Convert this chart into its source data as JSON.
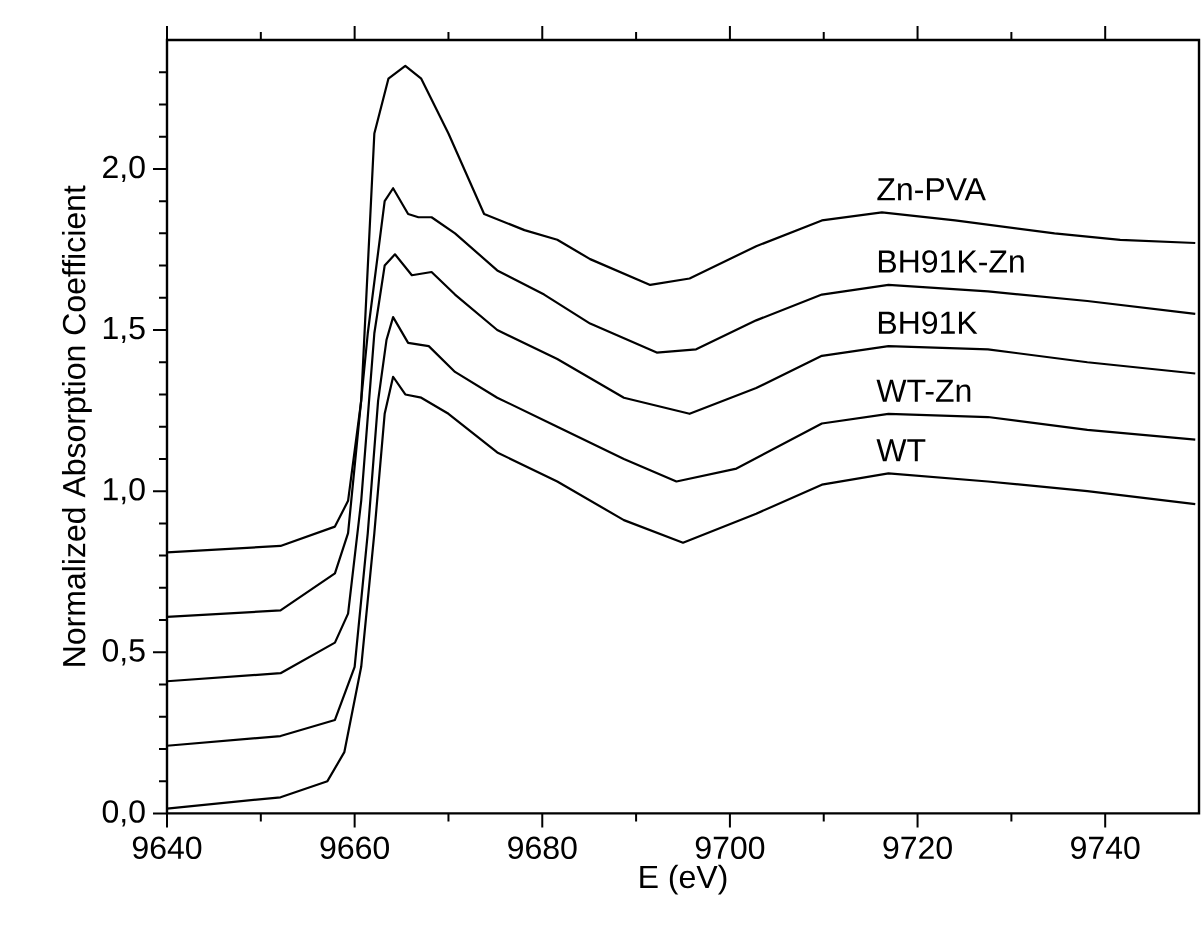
{
  "chart_data": {
    "type": "line",
    "xlabel": "E (eV)",
    "ylabel": "Normalized Absorption Coefficient",
    "xlim": [
      9640,
      9750
    ],
    "ylim": [
      0,
      2.4
    ],
    "xticks": [
      9640,
      {
        "value": 9650,
        "label": null
      },
      9660,
      {
        "value": 9670,
        "label": null
      },
      9680,
      {
        "value": 9690,
        "label": null
      },
      9700,
      {
        "value": 9710,
        "label": null
      },
      9720,
      {
        "value": 9730,
        "label": null
      },
      9740
    ],
    "yticks": [
      {
        "value": 0,
        "label": "0,0"
      },
      {
        "value": 0.1,
        "label": null
      },
      {
        "value": 0.2,
        "label": null
      },
      {
        "value": 0.3,
        "label": null
      },
      {
        "value": 0.4,
        "label": null
      },
      {
        "value": 0.5,
        "label": "0,5"
      },
      {
        "value": 0.6,
        "label": null
      },
      {
        "value": 0.7,
        "label": null
      },
      {
        "value": 0.8,
        "label": null
      },
      {
        "value": 0.9,
        "label": null
      },
      {
        "value": 1.0,
        "label": "1,0"
      },
      {
        "value": 1.1,
        "label": null
      },
      {
        "value": 1.2,
        "label": null
      },
      {
        "value": 1.3,
        "label": null
      },
      {
        "value": 1.4,
        "label": null
      },
      {
        "value": 1.5,
        "label": "1,5"
      },
      {
        "value": 1.6,
        "label": null
      },
      {
        "value": 1.7,
        "label": null
      },
      {
        "value": 1.8,
        "label": null
      },
      {
        "value": 1.9,
        "label": null
      },
      {
        "value": 2.0,
        "label": "2,0"
      },
      {
        "value": 2.1,
        "label": null
      },
      {
        "value": 2.2,
        "label": null
      },
      {
        "value": 2.3,
        "label": null
      }
    ],
    "grid": false,
    "legend": false,
    "marker": "none",
    "line_style": "solid",
    "series": [
      {
        "name": "Zn-PVA",
        "color": "#000000",
        "x": [
          9640,
          9652.1,
          9657.9,
          9659.3,
          9660.7,
          9662.1,
          9663.6,
          9665.4,
          9667.1,
          9670,
          9673.8,
          9678.1,
          9681.6,
          9685.1,
          9691.5,
          9695.7,
          9702.8,
          9709.8,
          9716.2,
          9724,
          9734.6,
          9741.6,
          9749.6
        ],
        "values": [
          0.81,
          0.83,
          0.89,
          0.97,
          1.28,
          2.11,
          2.28,
          2.32,
          2.28,
          2.11,
          1.86,
          1.81,
          1.78,
          1.72,
          1.64,
          1.66,
          1.76,
          1.84,
          1.865,
          1.84,
          1.8,
          1.78,
          1.77
        ]
      },
      {
        "name": "BH91K-Zn",
        "color": "#000000",
        "x": [
          9640,
          9652.1,
          9657.9,
          9659.3,
          9661.4,
          9663.2,
          9664.1,
          9665.7,
          9666.8,
          9668.2,
          9670.7,
          9675.2,
          9680.2,
          9685.1,
          9692.2,
          9696.4,
          9702.8,
          9709.8,
          9716.9,
          9727.5,
          9738.1,
          9749.6
        ],
        "values": [
          0.61,
          0.63,
          0.745,
          0.87,
          1.49,
          1.9,
          1.94,
          1.86,
          1.85,
          1.85,
          1.8,
          1.685,
          1.61,
          1.52,
          1.43,
          1.44,
          1.53,
          1.61,
          1.64,
          1.62,
          1.59,
          1.55
        ]
      },
      {
        "name": "BH91K",
        "color": "#000000",
        "x": [
          9640,
          9652.1,
          9657.9,
          9659.3,
          9660.7,
          9662.1,
          9663.2,
          9664.3,
          9666.1,
          9668.2,
          9670.7,
          9675.2,
          9681.6,
          9688.7,
          9695.7,
          9702.8,
          9709.8,
          9716.9,
          9727.5,
          9738.1,
          9749.6
        ],
        "values": [
          0.41,
          0.435,
          0.53,
          0.62,
          0.97,
          1.49,
          1.7,
          1.735,
          1.67,
          1.68,
          1.61,
          1.5,
          1.41,
          1.29,
          1.24,
          1.32,
          1.42,
          1.45,
          1.44,
          1.4,
          1.365
        ]
      },
      {
        "name": "WT-Zn",
        "color": "#000000",
        "x": [
          9640,
          9652.1,
          9657.9,
          9660,
          9661.4,
          9662.5,
          9663.4,
          9664.1,
          9665.7,
          9667.9,
          9670.7,
          9675.2,
          9681.6,
          9688.7,
          9694.3,
          9700.7,
          9709.8,
          9716.9,
          9727.5,
          9738.1,
          9749.6
        ],
        "values": [
          0.21,
          0.24,
          0.29,
          0.455,
          0.87,
          1.28,
          1.47,
          1.54,
          1.46,
          1.45,
          1.37,
          1.29,
          1.2,
          1.1,
          1.03,
          1.07,
          1.21,
          1.24,
          1.23,
          1.19,
          1.16
        ]
      },
      {
        "name": "WT",
        "color": "#000000",
        "x": [
          9640,
          9652.1,
          9657.1,
          9658.9,
          9660.7,
          9662.1,
          9663.2,
          9664.1,
          9665.4,
          9667.1,
          9670,
          9675.2,
          9681.6,
          9688.7,
          9695,
          9702.8,
          9709.8,
          9716.9,
          9727.5,
          9738.1,
          9749.6
        ],
        "values": [
          0.015,
          0.05,
          0.1,
          0.19,
          0.455,
          0.87,
          1.24,
          1.355,
          1.3,
          1.29,
          1.24,
          1.12,
          1.03,
          0.91,
          0.84,
          0.93,
          1.02,
          1.055,
          1.03,
          1.0,
          0.96
        ]
      }
    ]
  }
}
